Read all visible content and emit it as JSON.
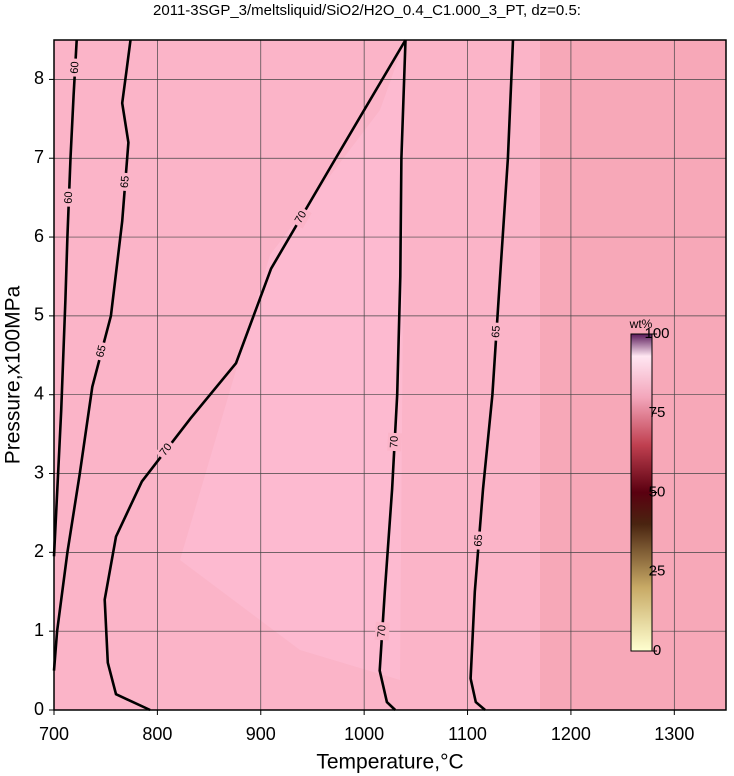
{
  "chart_data": {
    "type": "contour",
    "title": "2011-3SGP_3/meltsliquid/SiO2/H2O_0.4_C1.000_3_PT, dz=0.5:",
    "x_label": "Temperature,°C",
    "y_label": "Pressure,x100MPa",
    "xlim": [
      700,
      1350
    ],
    "ylim": [
      0,
      8.5
    ],
    "xticks": [
      700,
      800,
      900,
      1000,
      1100,
      1200,
      1300
    ],
    "yticks": [
      0,
      1,
      2,
      3,
      4,
      5,
      6,
      7,
      8
    ],
    "grid": true,
    "contours": [
      {
        "level": 60,
        "x": [
          700,
          704,
          707,
          709,
          711,
          713,
          716,
          719,
          722
        ],
        "y": [
          1.95,
          3,
          3.8,
          4.5,
          5.2,
          6,
          7,
          7.8,
          8.5
        ]
      },
      {
        "level": 65,
        "x": [
          700,
          703,
          713,
          725,
          737,
          755,
          766,
          772,
          766,
          770,
          774
        ],
        "y": [
          0.5,
          1,
          2,
          3,
          4.1,
          5,
          6.2,
          7.2,
          7.7,
          8.1,
          8.5
        ]
      },
      {
        "level": 70,
        "x": [
          793,
          760,
          752,
          749,
          760,
          785,
          832,
          876,
          910,
          968,
          1040
        ],
        "y": [
          0,
          0.2,
          0.6,
          1.4,
          2.2,
          2.9,
          3.7,
          4.4,
          5.6,
          6.9,
          8.5
        ]
      },
      {
        "level": 70,
        "x": [
          1040,
          1036,
          1035,
          1032,
          1027,
          1020,
          1015,
          1022,
          1030
        ],
        "y": [
          8.5,
          7,
          5.5,
          4,
          2.8,
          1.5,
          0.5,
          0.1,
          0
        ]
      },
      {
        "level": 65,
        "x": [
          1144,
          1139,
          1132,
          1124,
          1115,
          1107,
          1103,
          1108,
          1117
        ],
        "y": [
          8.5,
          7,
          5.6,
          4,
          2.8,
          1.5,
          0.4,
          0.1,
          0
        ]
      }
    ],
    "colorbar": {
      "label": "wt%",
      "lim": [
        0,
        100
      ],
      "ticks": [
        0,
        25,
        50,
        75,
        100
      ]
    }
  }
}
